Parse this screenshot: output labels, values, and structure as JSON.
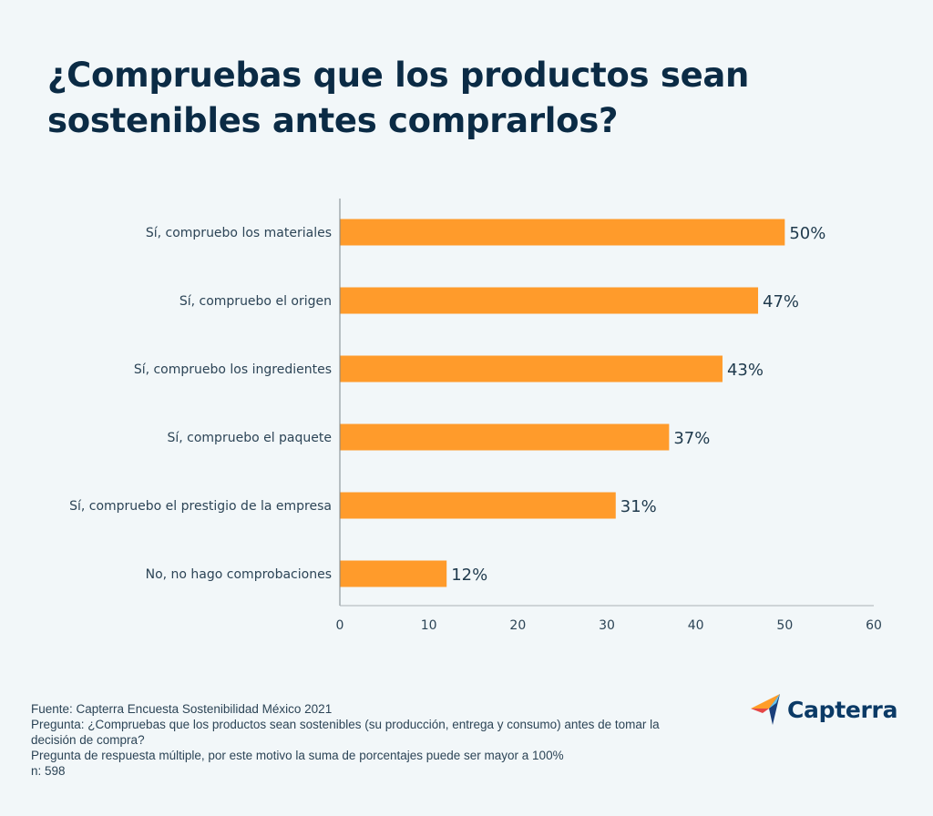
{
  "title_lines": [
    "¿Compruebas que los productos sean",
    "sostenibles antes comprarlos?"
  ],
  "chart_data": {
    "type": "bar",
    "orientation": "horizontal",
    "title": "¿Compruebas que los productos sean sostenibles antes comprarlos?",
    "categories": [
      "Sí, compruebo los materiales",
      "Sí, compruebo el origen",
      "Sí, compruebo los ingredientes",
      "Sí, compruebo el paquete",
      "Sí, compruebo el prestigio de la empresa",
      "No, no hago comprobaciones"
    ],
    "values": [
      50,
      47,
      43,
      37,
      31,
      12
    ],
    "data_labels": [
      "50%",
      "47%",
      "43%",
      "37%",
      "31%",
      "12%"
    ],
    "xlabel": "",
    "ylabel": "",
    "xlim": [
      0,
      60
    ],
    "xticks": [
      0,
      10,
      20,
      30,
      40,
      50,
      60
    ],
    "grid": false,
    "legend": "none",
    "bar_color": "#ff9b2b"
  },
  "footer": {
    "source": "Fuente: Capterra Encuesta Sostenibilidad México 2021",
    "question_line1": "Pregunta: ¿Compruebas que los productos sean sostenibles (su producción, entrega y consumo) antes de tomar la",
    "question_line2": "decisión de compra?",
    "note": "Pregunta de respuesta múltiple, por este motivo la suma de porcentajes puede ser mayor a 100%",
    "sample": "n: 598"
  },
  "logo": {
    "text": "Capterra"
  }
}
